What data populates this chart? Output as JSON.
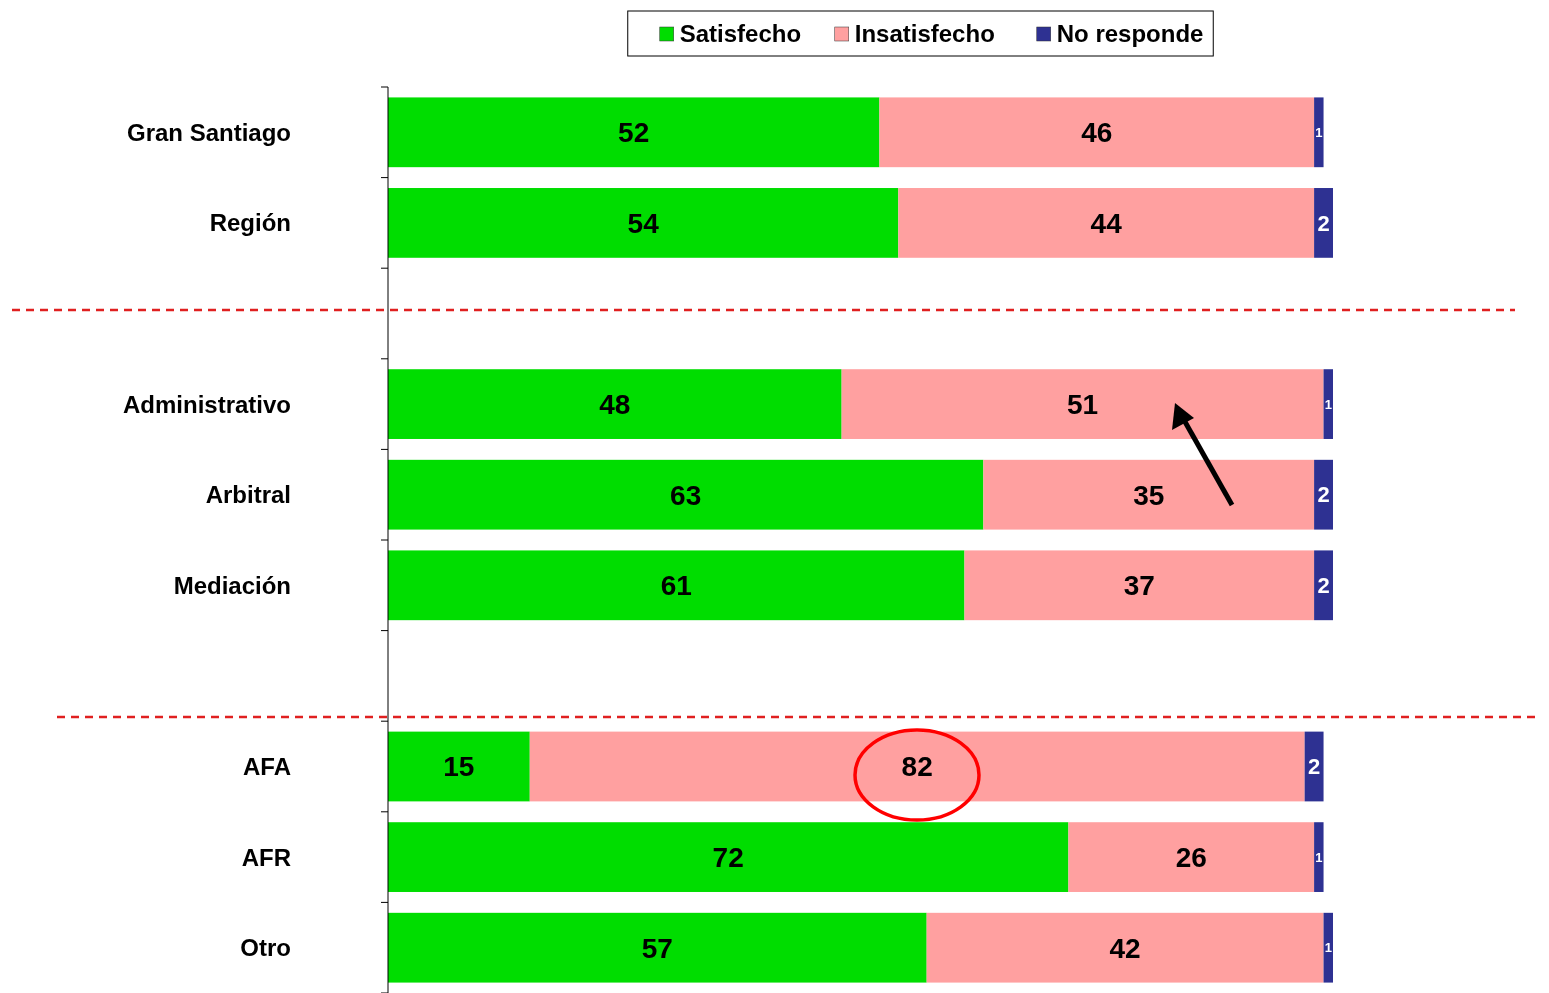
{
  "chart_data": {
    "type": "bar",
    "orientation": "horizontal",
    "stacked": true,
    "data_labels": true,
    "legend": "top",
    "categories": [
      "Gran Santiago",
      "Región",
      null,
      "Administrativo",
      "Arbitral",
      "Mediación",
      null,
      "AFA",
      "AFR",
      "Otro"
    ],
    "series": [
      {
        "name": "Satisfecho",
        "color": "#00dd00",
        "values": [
          52,
          54,
          null,
          48,
          63,
          61,
          null,
          15,
          72,
          57
        ]
      },
      {
        "name": "Insatisfecho",
        "color": "#ffa0a0",
        "values": [
          46,
          44,
          null,
          51,
          35,
          37,
          null,
          82,
          26,
          42
        ]
      },
      {
        "name": "No responde",
        "color": "#2e3192",
        "values": [
          1,
          2,
          null,
          1,
          2,
          2,
          null,
          2,
          1,
          1
        ]
      }
    ]
  }
}
